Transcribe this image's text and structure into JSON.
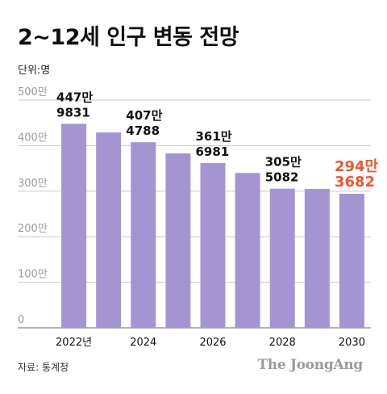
{
  "title": "2~12세 인구 변동 전망",
  "unit_label": "단위:명",
  "source": "자료: 통계청",
  "credit": "The JoongAng",
  "colors": {
    "bar": "#a495d2",
    "highlight": "#f0572c",
    "grid": "#c8c8c8",
    "axis_text": "#9b9b9b"
  },
  "chart_data": {
    "type": "bar",
    "title": "2~12세 인구 변동 전망",
    "ylabel": "단위:명",
    "ylim": [
      0,
      5000000
    ],
    "grid": true,
    "y_ticks": [
      {
        "value": 0,
        "label": "0"
      },
      {
        "value": 1000000,
        "label": "100만"
      },
      {
        "value": 2000000,
        "label": "200만"
      },
      {
        "value": 3000000,
        "label": "300만"
      },
      {
        "value": 4000000,
        "label": "400만"
      },
      {
        "value": 5000000,
        "label": "500만"
      }
    ],
    "categories": [
      2022,
      2023,
      2024,
      2025,
      2026,
      2027,
      2028,
      2029,
      2030
    ],
    "x_tick_labels": [
      "2022년",
      "",
      "2024",
      "",
      "2026",
      "",
      "2028",
      "",
      "2030"
    ],
    "values": [
      4479831,
      4290000,
      4074788,
      3830000,
      3616981,
      3400000,
      3055082,
      3050000,
      2943682
    ],
    "data_labels": [
      {
        "index": 0,
        "line1": "447만",
        "line2": "9831",
        "highlight": false
      },
      {
        "index": 2,
        "line1": "407만",
        "line2": "4788",
        "highlight": false
      },
      {
        "index": 4,
        "line1": "361만",
        "line2": "6981",
        "highlight": false
      },
      {
        "index": 6,
        "line1": "305만",
        "line2": "5082",
        "highlight": false
      },
      {
        "index": 8,
        "line1": "294만",
        "line2": "3682",
        "highlight": true
      }
    ]
  }
}
